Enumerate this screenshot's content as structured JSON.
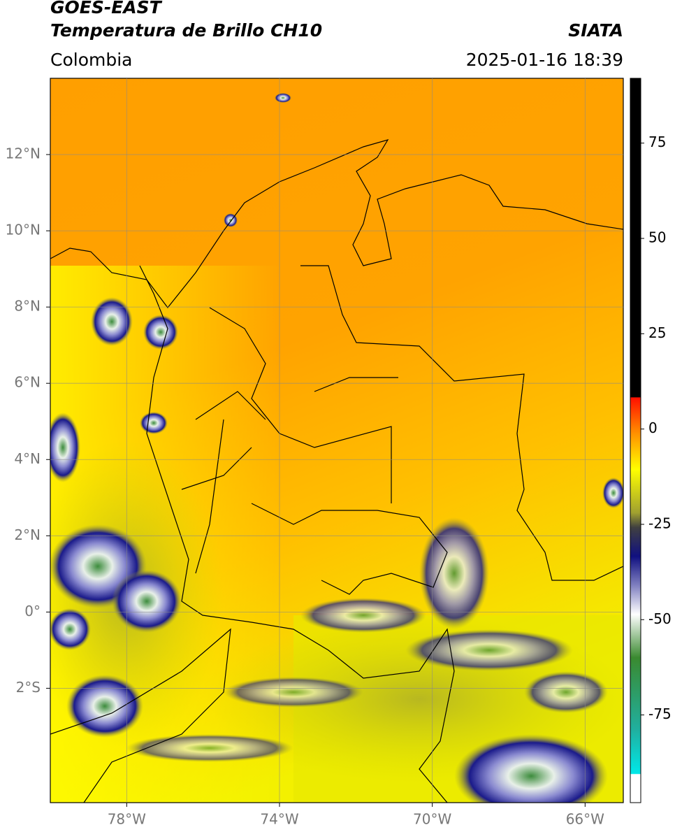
{
  "header": {
    "title": "GOES-EAST",
    "subtitle": "Temperatura de Brillo CH10",
    "source": "SIATA",
    "region": "Colombia",
    "datetime": "2025-01-16 18:39"
  },
  "map": {
    "xlim": [
      -80,
      -65
    ],
    "ylim": [
      -5,
      14
    ],
    "xticks": [
      {
        "value": -78,
        "label": "78°W"
      },
      {
        "value": -74,
        "label": "74°W"
      },
      {
        "value": -70,
        "label": "70°W"
      },
      {
        "value": -66,
        "label": "66°W"
      }
    ],
    "yticks": [
      {
        "value": 12,
        "label": "12°N"
      },
      {
        "value": 10,
        "label": "10°N"
      },
      {
        "value": 8,
        "label": "8°N"
      },
      {
        "value": 6,
        "label": "6°N"
      },
      {
        "value": 4,
        "label": "4°N"
      },
      {
        "value": 2,
        "label": "2°N"
      },
      {
        "value": 0,
        "label": "0°"
      },
      {
        "value": -2,
        "label": "2°S"
      }
    ],
    "grid": true
  },
  "colorbar": {
    "lim": [
      -98,
      92
    ],
    "ticks": [
      75,
      50,
      25,
      0,
      -25,
      -50,
      -75
    ]
  }
}
